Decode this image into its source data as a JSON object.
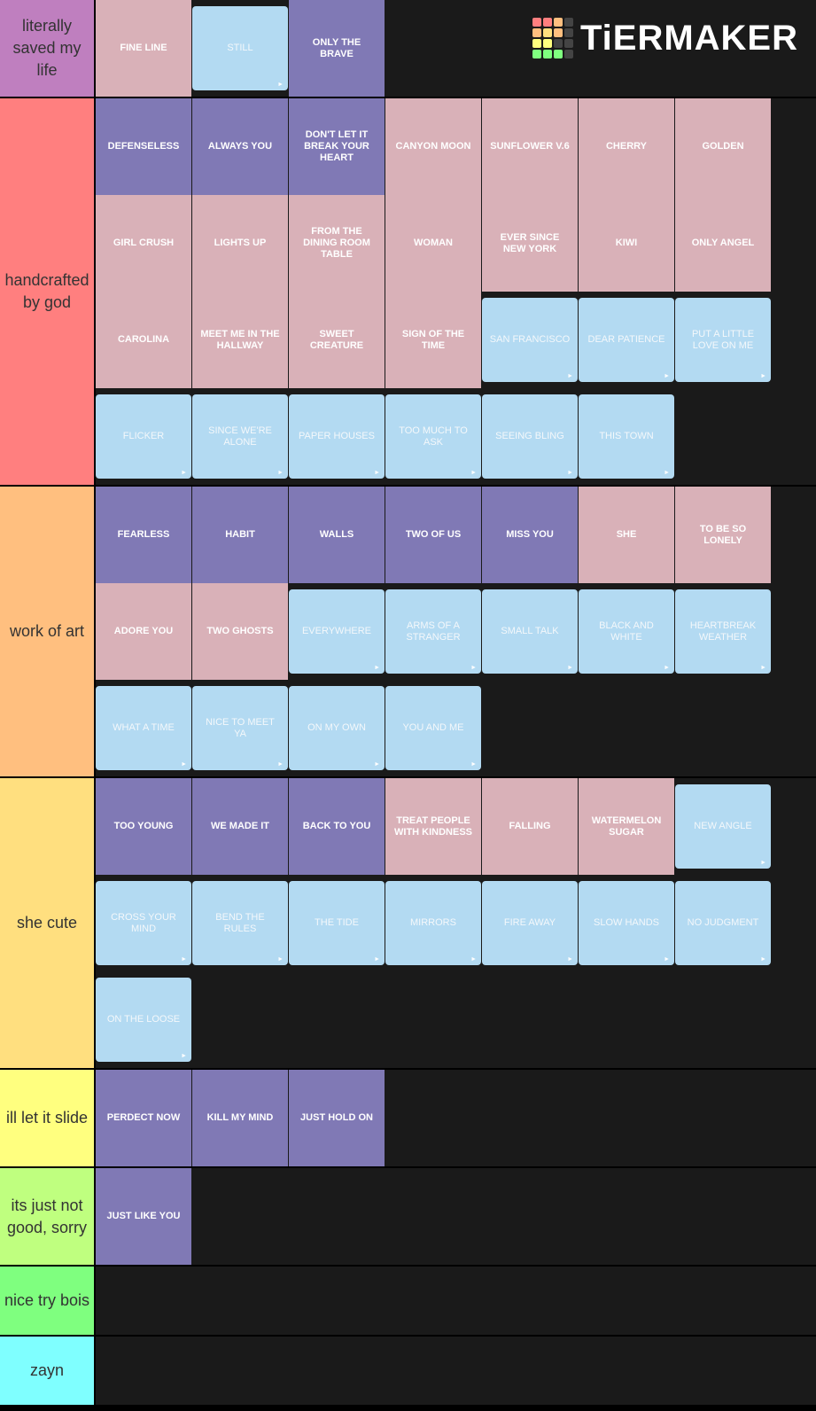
{
  "logo": "TiERMAKER",
  "tiers": [
    {
      "label": "literally saved my life",
      "color": "#bf7fbf",
      "items": [
        {
          "label": "FINE LINE",
          "color": "#d9b1b8"
        },
        {
          "label": "STILL",
          "color": "#b3daf2"
        },
        {
          "label": "ONLY THE BRAVE",
          "color": "#8079b5"
        }
      ]
    },
    {
      "label": "handcrafted by god",
      "color": "#ff7f7f",
      "items": [
        {
          "label": "DEFENSELESS",
          "color": "#8079b5"
        },
        {
          "label": "ALWAYS YOU",
          "color": "#8079b5"
        },
        {
          "label": "DON'T LET IT BREAK YOUR HEART",
          "color": "#8079b5"
        },
        {
          "label": "CANYON MOON",
          "color": "#d9b1b8"
        },
        {
          "label": "SUNFLOWER V.6",
          "color": "#d9b1b8"
        },
        {
          "label": "CHERRY",
          "color": "#d9b1b8"
        },
        {
          "label": "GOLDEN",
          "color": "#d9b1b8"
        },
        {
          "label": "GIRL CRUSH",
          "color": "#d9b1b8"
        },
        {
          "label": "LIGHTS UP",
          "color": "#d9b1b8"
        },
        {
          "label": "FROM THE DINING ROOM TABLE",
          "color": "#d9b1b8"
        },
        {
          "label": "WOMAN",
          "color": "#d9b1b8"
        },
        {
          "label": "EVER SINCE NEW YORK",
          "color": "#d9b1b8"
        },
        {
          "label": "KIWI",
          "color": "#d9b1b8"
        },
        {
          "label": "ONLY ANGEL",
          "color": "#d9b1b8"
        },
        {
          "label": "CAROLINA",
          "color": "#d9b1b8"
        },
        {
          "label": "MEET ME IN THE HALLWAY",
          "color": "#d9b1b8"
        },
        {
          "label": "SWEET CREATURE",
          "color": "#d9b1b8"
        },
        {
          "label": "SIGN OF THE TIME",
          "color": "#d9b1b8"
        },
        {
          "label": "SAN FRANCISCO",
          "color": "#b3daf2"
        },
        {
          "label": "DEAR PATIENCE",
          "color": "#b3daf2"
        },
        {
          "label": "PUT A LITTLE LOVE ON ME",
          "color": "#b3daf2"
        },
        {
          "label": "FLICKER",
          "color": "#b3daf2"
        },
        {
          "label": "SINCE WE'RE ALONE",
          "color": "#b3daf2"
        },
        {
          "label": "PAPER HOUSES",
          "color": "#b3daf2"
        },
        {
          "label": "TOO MUCH TO ASK",
          "color": "#b3daf2"
        },
        {
          "label": "SEEING BLING",
          "color": "#b3daf2"
        },
        {
          "label": "THIS TOWN",
          "color": "#b3daf2"
        }
      ]
    },
    {
      "label": "work of art",
      "color": "#ffbf7f",
      "items": [
        {
          "label": "FEARLESS",
          "color": "#8079b5"
        },
        {
          "label": "HABIT",
          "color": "#8079b5"
        },
        {
          "label": "WALLS",
          "color": "#8079b5"
        },
        {
          "label": "TWO OF US",
          "color": "#8079b5"
        },
        {
          "label": "MISS YOU",
          "color": "#8079b5"
        },
        {
          "label": "SHE",
          "color": "#d9b1b8"
        },
        {
          "label": "TO BE SO LONELY",
          "color": "#d9b1b8"
        },
        {
          "label": "ADORE YOU",
          "color": "#d9b1b8"
        },
        {
          "label": "TWO GHOSTS",
          "color": "#d9b1b8"
        },
        {
          "label": "EVERYWHERE",
          "color": "#b3daf2"
        },
        {
          "label": "ARMS OF A STRANGER",
          "color": "#b3daf2"
        },
        {
          "label": "SMALL TALK",
          "color": "#b3daf2"
        },
        {
          "label": "BLACK AND WHITE",
          "color": "#b3daf2"
        },
        {
          "label": "HEARTBREAK WEATHER",
          "color": "#b3daf2"
        },
        {
          "label": "WHAT A TIME",
          "color": "#b3daf2"
        },
        {
          "label": "NICE TO MEET YA",
          "color": "#b3daf2"
        },
        {
          "label": "ON MY OWN",
          "color": "#b3daf2"
        },
        {
          "label": "YOU AND ME",
          "color": "#b3daf2"
        }
      ]
    },
    {
      "label": "she cute",
      "color": "#ffdf7f",
      "items": [
        {
          "label": "TOO YOUNG",
          "color": "#8079b5"
        },
        {
          "label": "WE MADE IT",
          "color": "#8079b5"
        },
        {
          "label": "BACK TO YOU",
          "color": "#8079b5"
        },
        {
          "label": "TREAT PEOPLE WITH KINDNESS",
          "color": "#d9b1b8"
        },
        {
          "label": "FALLING",
          "color": "#d9b1b8"
        },
        {
          "label": "WATERMELON SUGAR",
          "color": "#d9b1b8"
        },
        {
          "label": "NEW ANGLE",
          "color": "#b3daf2"
        },
        {
          "label": "CROSS YOUR MIND",
          "color": "#b3daf2"
        },
        {
          "label": "BEND THE RULES",
          "color": "#b3daf2"
        },
        {
          "label": "THE TIDE",
          "color": "#b3daf2"
        },
        {
          "label": "MIRRORS",
          "color": "#b3daf2"
        },
        {
          "label": "FIRE AWAY",
          "color": "#b3daf2"
        },
        {
          "label": "SLOW HANDS",
          "color": "#b3daf2"
        },
        {
          "label": "NO JUDGMENT",
          "color": "#b3daf2"
        },
        {
          "label": "ON THE LOOSE",
          "color": "#b3daf2"
        }
      ]
    },
    {
      "label": "ill let it slide",
      "color": "#ffff7f",
      "items": [
        {
          "label": "PERDECT NOW",
          "color": "#8079b5"
        },
        {
          "label": "KILL MY MIND",
          "color": "#8079b5"
        },
        {
          "label": "JUST HOLD ON",
          "color": "#8079b5"
        }
      ]
    },
    {
      "label": "its just not good, sorry",
      "color": "#bfff7f",
      "items": [
        {
          "label": "JUST LIKE YOU",
          "color": "#8079b5"
        }
      ]
    },
    {
      "label": "nice try bois",
      "color": "#7fff7f",
      "items": []
    },
    {
      "label": "zayn",
      "color": "#7fffff",
      "items": []
    }
  ]
}
